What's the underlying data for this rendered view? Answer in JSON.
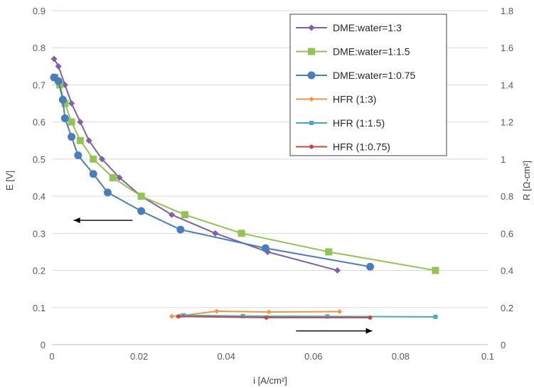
{
  "chart_data": {
    "type": "line",
    "xlabel": "i [A/cm²]",
    "ylabel": "E [V]",
    "y2label": "R [Ω-cm²]",
    "xlim": [
      0,
      0.1
    ],
    "ylim": [
      0,
      0.9
    ],
    "y2lim": [
      0,
      1.8
    ],
    "x_ticks": [
      "0",
      "0.02",
      "0.04",
      "0.06",
      "0.08",
      "0.1"
    ],
    "y_ticks": [
      "0",
      "0.1",
      "0.2",
      "0.3",
      "0.4",
      "0.5",
      "0.6",
      "0.7",
      "0.8",
      "0.9"
    ],
    "y2_ticks": [
      "0",
      "0.2",
      "0.4",
      "0.6",
      "0.8",
      "1",
      "1.2",
      "1.4",
      "1.6",
      "1.8"
    ],
    "grid": "horizontal",
    "legend_position": "top-right",
    "series": [
      {
        "name": "DME:water=1:3",
        "color": "#7F5FA6",
        "marker": "diamond",
        "axis": "left",
        "x": [
          0.0005,
          0.0015,
          0.003,
          0.0045,
          0.0065,
          0.0085,
          0.0115,
          0.0155,
          0.0205,
          0.0275,
          0.0375,
          0.0495,
          0.0655
        ],
        "y": [
          0.77,
          0.75,
          0.7,
          0.65,
          0.6,
          0.55,
          0.5,
          0.45,
          0.4,
          0.35,
          0.3,
          0.25,
          0.2
        ]
      },
      {
        "name": "DME:water=1:1.5",
        "color": "#92C353",
        "marker": "square",
        "axis": "left",
        "x": [
          0.0007,
          0.0018,
          0.003,
          0.0045,
          0.0065,
          0.0095,
          0.014,
          0.0205,
          0.0305,
          0.0435,
          0.0635,
          0.088
        ],
        "y": [
          0.72,
          0.7,
          0.65,
          0.6,
          0.55,
          0.5,
          0.45,
          0.4,
          0.35,
          0.3,
          0.25,
          0.2
        ]
      },
      {
        "name": "DME:water=1:0.75",
        "color": "#4A7EBB",
        "marker": "circle",
        "axis": "left",
        "x": [
          0.0005,
          0.0015,
          0.0025,
          0.003,
          0.0045,
          0.006,
          0.0095,
          0.0128,
          0.0205,
          0.0295,
          0.049,
          0.073
        ],
        "y": [
          0.72,
          0.71,
          0.66,
          0.61,
          0.56,
          0.51,
          0.46,
          0.41,
          0.36,
          0.31,
          0.26,
          0.21
        ]
      },
      {
        "name": "HFR (1:3)",
        "color": "#F0953F",
        "marker": "diamond",
        "axis": "right",
        "x": [
          0.0275,
          0.0295,
          0.0378,
          0.0498,
          0.066
        ],
        "y": [
          0.152,
          0.156,
          0.18,
          0.176,
          0.178
        ]
      },
      {
        "name": "HFR (1:1.5)",
        "color": "#46AAC5",
        "marker": "square",
        "axis": "right",
        "x": [
          0.0302,
          0.0438,
          0.0632,
          0.088
        ],
        "y": [
          0.158,
          0.154,
          0.152,
          0.15
        ]
      },
      {
        "name": "HFR (1:0.75)",
        "color": "#BE4B48",
        "marker": "circle",
        "axis": "right",
        "x": [
          0.029,
          0.0492,
          0.073
        ],
        "y": [
          0.152,
          0.146,
          0.146
        ]
      }
    ],
    "annotations": [
      {
        "type": "arrow",
        "direction": "left",
        "from": [
          0.0185,
          0.335
        ],
        "to": [
          0.005,
          0.335
        ],
        "axis": "left"
      },
      {
        "type": "arrow",
        "direction": "right",
        "from": [
          0.056,
          0.037
        ],
        "to": [
          0.0735,
          0.037
        ],
        "axis": "left"
      }
    ]
  }
}
